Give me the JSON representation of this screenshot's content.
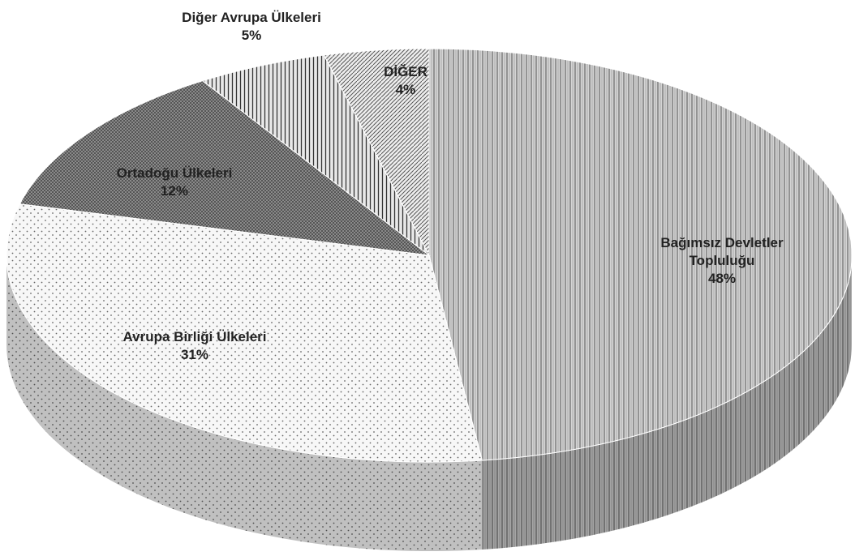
{
  "chart_data": {
    "type": "pie",
    "categories": [
      "Bağımsız Devletler Topluluğu",
      "Avrupa Birliği Ülkeleri",
      "Ortadoğu Ülkeleri",
      "Diğer Avrupa Ülkeleri",
      "DİĞER"
    ],
    "values": [
      48,
      31,
      12,
      5,
      4
    ],
    "value_labels": [
      "48%",
      "31%",
      "12%",
      "5%",
      "4%"
    ],
    "colors": [
      "#d4d4d4",
      "#f7f7f7",
      "#8a8a8a",
      "#e8e8e8",
      "#eeeeee"
    ]
  }
}
